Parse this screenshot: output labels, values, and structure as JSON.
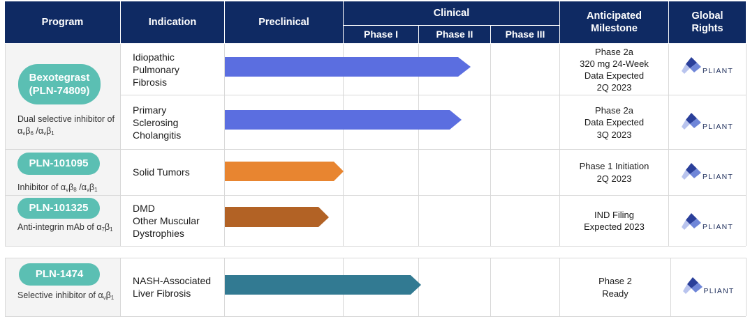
{
  "header": {
    "program": "Program",
    "indication": "Indication",
    "preclinical": "Preclinical",
    "clinical": "Clinical",
    "phase1": "Phase I",
    "phase2": "Phase II",
    "phase3": "Phase III",
    "milestone": "Anticipated Milestone",
    "rights": "Global Rights"
  },
  "programs": [
    {
      "name": "Bexotegrast",
      "code": "(PLN-74809)",
      "description_prefix": "Dual selective inhibitor of α",
      "description_parts": [
        "v",
        "β",
        "6",
        " /α",
        "v",
        "β",
        "1"
      ],
      "indications": [
        {
          "lines": [
            "Idiopathic",
            "Pulmonary",
            "Fibrosis"
          ],
          "milestone": [
            "Phase 2a",
            "320 mg 24-Week",
            "Data Expected",
            "2Q 2023"
          ],
          "stage": "Phase II",
          "color": "#5b6ee0"
        },
        {
          "lines": [
            "Primary",
            "Sclerosing",
            "Cholangitis"
          ],
          "milestone": [
            "Phase 2a",
            "Data Expected",
            "3Q 2023"
          ],
          "stage": "Phase II",
          "color": "#5b6ee0"
        }
      ]
    },
    {
      "name": "PLN-101095",
      "description": "Inhibitor of αvβ8 /αvβ1",
      "indications": [
        {
          "lines": [
            "Solid Tumors"
          ],
          "milestone": [
            "Phase 1 Initiation",
            "2Q 2023"
          ],
          "stage": "Preclinical",
          "color": "#e88530"
        }
      ]
    },
    {
      "name": "PLN-101325",
      "description": "Anti-integrin mAb of α7β1",
      "indications": [
        {
          "lines": [
            "DMD",
            "Other Muscular",
            "Dystrophies"
          ],
          "milestone": [
            "IND Filing",
            "Expected 2023"
          ],
          "stage": "Preclinical",
          "color": "#b26225"
        }
      ]
    },
    {
      "name": "PLN-1474",
      "description": "Selective inhibitor of αvβ1",
      "indications": [
        {
          "lines": [
            "NASH-Associated",
            "Liver Fibrosis"
          ],
          "milestone": [
            "Phase 2",
            "Ready"
          ],
          "stage": "Phase I",
          "color": "#327a92"
        }
      ]
    }
  ],
  "logo_text": "PLIANT",
  "colors": {
    "header": "#0f2a63",
    "pill": "#5bbfb3"
  }
}
